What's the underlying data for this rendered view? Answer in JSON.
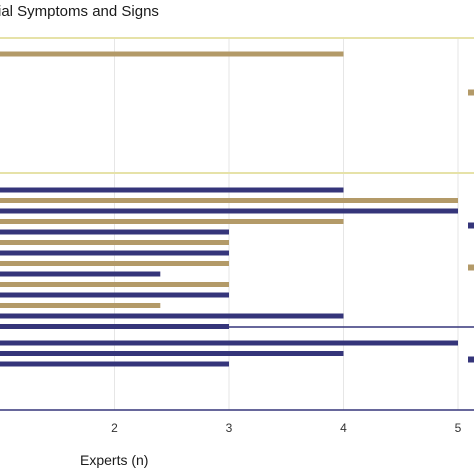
{
  "chart_data": {
    "type": "bar",
    "orientation": "horizontal",
    "title": "ial Symptoms and Signs",
    "xlabel": "Experts (n)",
    "ylabel": "",
    "xlim": [
      1,
      5.1
    ],
    "x_ticks": [
      "2",
      "3",
      "4",
      "5"
    ],
    "grid": true,
    "legend": "none",
    "colors": {
      "tan": "#b39a68",
      "navy": "#35357a",
      "divider_tan": "#e6e2a8",
      "divider_navy": "#35357a"
    },
    "groups": [
      {
        "divider_color": "tan",
        "bars": [
          {
            "value": 4.0,
            "color": "tan"
          }
        ],
        "clipped_marks": [
          {
            "color": "tan"
          }
        ]
      },
      {
        "divider_color": "tan",
        "bars": [
          {
            "value": 4.0,
            "color": "navy"
          },
          {
            "value": 5.0,
            "color": "tan"
          },
          {
            "value": 5.0,
            "color": "navy"
          },
          {
            "value": 4.0,
            "color": "tan"
          },
          {
            "value": 3.0,
            "color": "navy"
          },
          {
            "value": 3.0,
            "color": "tan"
          },
          {
            "value": 3.0,
            "color": "navy"
          },
          {
            "value": 3.0,
            "color": "tan"
          },
          {
            "value": 2.4,
            "color": "navy"
          },
          {
            "value": 3.0,
            "color": "tan"
          },
          {
            "value": 3.0,
            "color": "navy"
          },
          {
            "value": 2.4,
            "color": "tan"
          },
          {
            "value": 4.0,
            "color": "navy"
          },
          {
            "value": 3.0,
            "color": "navy"
          }
        ],
        "clipped_marks": [
          {
            "color": "navy"
          },
          {
            "color": "tan"
          }
        ]
      },
      {
        "divider_color": "navy",
        "bars": [
          {
            "value": 5.0,
            "color": "navy"
          },
          {
            "value": 4.0,
            "color": "navy"
          },
          {
            "value": 3.0,
            "color": "navy"
          }
        ],
        "clipped_marks": [
          {
            "color": "navy"
          }
        ]
      }
    ]
  }
}
